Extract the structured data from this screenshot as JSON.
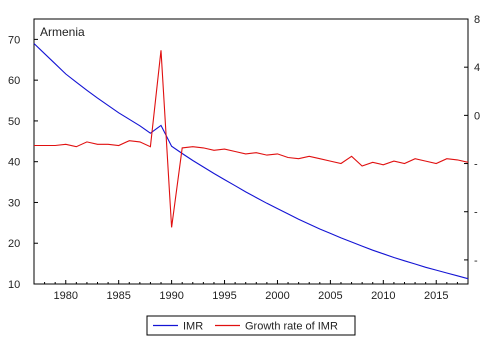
{
  "chart_data": {
    "type": "line",
    "panel_label": "Armenia",
    "x_ticks": [
      1980,
      1985,
      1990,
      1995,
      2000,
      2005,
      2010,
      2015
    ],
    "xlim": [
      1977,
      2018
    ],
    "left_axis": {
      "ticks": [
        10,
        20,
        30,
        40,
        50,
        60,
        70
      ],
      "ylim": [
        10,
        75
      ]
    },
    "right_axis": {
      "visible_ticks": [
        "8",
        "4",
        "0",
        "-",
        "-",
        "-"
      ],
      "ylim": [
        -14,
        8
      ]
    },
    "series": [
      {
        "name": "IMR",
        "axis": "left",
        "color": "#1414d4",
        "x": [
          1977,
          1978,
          1979,
          1980,
          1981,
          1982,
          1983,
          1984,
          1985,
          1986,
          1987,
          1988,
          1989,
          1990,
          1991,
          1992,
          1993,
          1994,
          1995,
          1996,
          1997,
          1998,
          1999,
          2000,
          2001,
          2002,
          2003,
          2004,
          2005,
          2006,
          2007,
          2008,
          2009,
          2010,
          2011,
          2012,
          2013,
          2014,
          2015,
          2016,
          2017,
          2018
        ],
        "values": [
          69,
          66.5,
          64,
          61.5,
          59.5,
          57.5,
          55.6,
          53.8,
          52,
          50.4,
          48.8,
          47,
          48.9,
          43.8,
          42,
          40.3,
          38.7,
          37.1,
          35.6,
          34.1,
          32.6,
          31.2,
          29.8,
          28.5,
          27.2,
          25.9,
          24.7,
          23.5,
          22.4,
          21.3,
          20.3,
          19.3,
          18.3,
          17.4,
          16.5,
          15.7,
          14.9,
          14.1,
          13.4,
          12.7,
          12.0,
          11.3
        ]
      },
      {
        "name": "Growth rate of IMR",
        "axis": "right",
        "color": "#e01010",
        "x": [
          1977,
          1978,
          1979,
          1980,
          1981,
          1982,
          1983,
          1984,
          1985,
          1986,
          1987,
          1988,
          1989,
          1990,
          1991,
          1992,
          1993,
          1994,
          1995,
          1996,
          1997,
          1998,
          1999,
          2000,
          2001,
          2002,
          2003,
          2004,
          2005,
          2006,
          2007,
          2008,
          2009,
          2010,
          2011,
          2012,
          2013,
          2014,
          2015,
          2016,
          2017,
          2018
        ],
        "values": [
          -2.5,
          -2.5,
          -2.5,
          -2.4,
          -2.6,
          -2.2,
          -2.4,
          -2.4,
          -2.5,
          -2.1,
          -2.2,
          -2.6,
          5.4,
          -9.3,
          -2.7,
          -2.6,
          -2.7,
          -2.9,
          -2.8,
          -3.0,
          -3.2,
          -3.1,
          -3.3,
          -3.2,
          -3.5,
          -3.6,
          -3.4,
          -3.6,
          -3.8,
          -4.0,
          -3.4,
          -4.2,
          -3.9,
          -4.1,
          -3.8,
          -4.0,
          -3.6,
          -3.8,
          -4.0,
          -3.6,
          -3.7,
          -3.9
        ]
      }
    ],
    "legend": {
      "placement": "bottom-center",
      "entries": [
        "IMR",
        "Growth rate of IMR"
      ]
    },
    "grid": false
  }
}
